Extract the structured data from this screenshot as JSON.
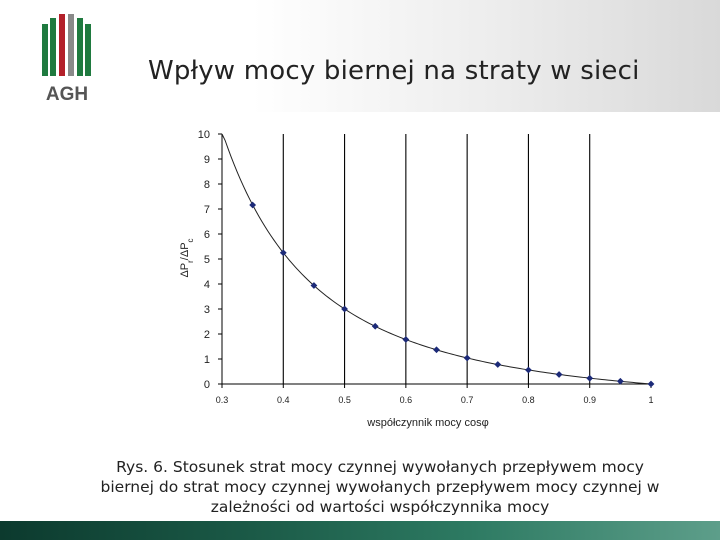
{
  "header": {
    "title": "Wpływ mocy biernej na straty w sieci",
    "logo_text": "AGH",
    "colors": {
      "green": "#1f7a3f",
      "red": "#b3202a",
      "gray": "#7a7a7a"
    }
  },
  "chart_data": {
    "type": "line",
    "xlabel": "współczynnik mocy cosφ",
    "ylabel": "ΔPr/ΔPc",
    "ylabel_main": "ΔP",
    "ylabel_sub1": "r",
    "ylabel_sep": "/ΔP",
    "ylabel_sub2": "c",
    "xlim": [
      0.3,
      1.0
    ],
    "ylim": [
      0,
      10
    ],
    "xticks": [
      "0.3",
      "0.4",
      "0.5",
      "0.6",
      "0.7",
      "0.8",
      "0.9",
      "1"
    ],
    "yticks": [
      "0",
      "1",
      "2",
      "3",
      "4",
      "5",
      "6",
      "7",
      "8",
      "9",
      "10"
    ],
    "vertical_gridlines_at": [
      0.4,
      0.5,
      0.6,
      0.7,
      0.8,
      0.9
    ],
    "series": [
      {
        "x": [
          0.35,
          0.4,
          0.45,
          0.5,
          0.55,
          0.6,
          0.65,
          0.7,
          0.75,
          0.8,
          0.85,
          0.9,
          0.95,
          1.0
        ],
        "y": [
          7.16,
          5.25,
          3.94,
          3.0,
          2.31,
          1.78,
          1.37,
          1.04,
          0.78,
          0.56,
          0.38,
          0.23,
          0.11,
          0.0
        ],
        "color": "#1c2a78"
      }
    ]
  },
  "caption": {
    "line1": "Rys. 6. Stosunek strat mocy czynnej wywołanych przepływem mocy",
    "line2": "biernej do strat mocy czynnej wywołanych przepływem mocy czynnej w",
    "line3": "zależności od wartości współczynnika mocy"
  }
}
